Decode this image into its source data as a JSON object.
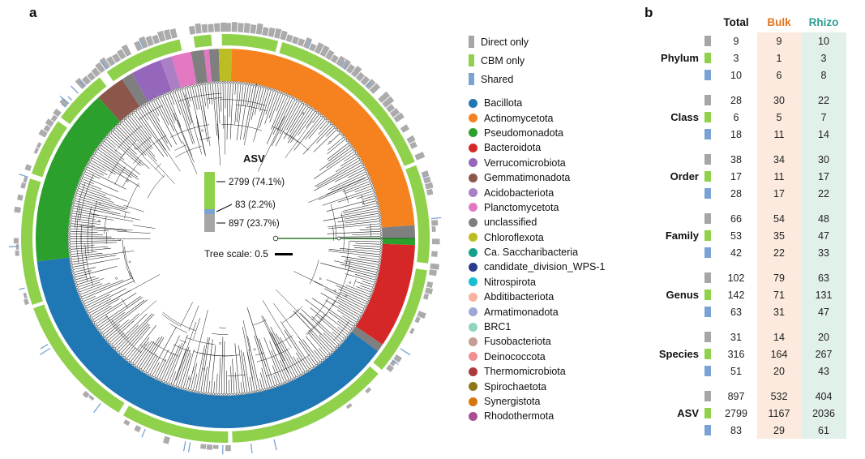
{
  "panel_labels": {
    "a": "a",
    "b": "b"
  },
  "chart_data": [
    {
      "type": "circular_phylogenetic_tree",
      "panel": "a",
      "ring_legend": [
        {
          "label": "Direct only",
          "color": "#a6a6a6"
        },
        {
          "label": "CBM only",
          "color": "#8fd14b"
        },
        {
          "label": "Shared",
          "color": "#7aa3d4"
        }
      ],
      "taxa_legend": [
        {
          "label": "Bacillota",
          "color": "#1f77b4"
        },
        {
          "label": "Actinomycetota",
          "color": "#f5821e"
        },
        {
          "label": "Pseudomonadota",
          "color": "#2ca02c"
        },
        {
          "label": "Bacteroidota",
          "color": "#d62728"
        },
        {
          "label": "Verrucomicrobiota",
          "color": "#9467bd"
        },
        {
          "label": "Gemmatimonadota",
          "color": "#8c564b"
        },
        {
          "label": "Acidobacteriota",
          "color": "#ab7fc5"
        },
        {
          "label": "Planctomycetota",
          "color": "#e377c2"
        },
        {
          "label": "unclassified",
          "color": "#7f7f7f"
        },
        {
          "label": "Chloroflexota",
          "color": "#bcbd22"
        },
        {
          "label": "Ca. Saccharibacteria",
          "color": "#13a18c"
        },
        {
          "label": "candidate_division_WPS-1",
          "color": "#2b3a8c"
        },
        {
          "label": "Nitrospirota",
          "color": "#17becf"
        },
        {
          "label": "Abditibacteriota",
          "color": "#f9b29f"
        },
        {
          "label": "Armatimonadota",
          "color": "#9fa8d5"
        },
        {
          "label": "BRC1",
          "color": "#8fd4c1"
        },
        {
          "label": "Fusobacteriota",
          "color": "#c49c94"
        },
        {
          "label": "Deinococcota",
          "color": "#f08f8f"
        },
        {
          "label": "Thermomicrobiota",
          "color": "#a93b3b"
        },
        {
          "label": "Spirochaetota",
          "color": "#8f7618"
        },
        {
          "label": "Synergistota",
          "color": "#d4770f"
        },
        {
          "label": "Rhodothermota",
          "color": "#aa4d93"
        }
      ],
      "asv_inset": {
        "title": "ASV",
        "segments": [
          {
            "label": "2799 (74.1%)",
            "value": 2799,
            "pct": 74.1,
            "set": "CBM only",
            "color": "#8fd14b"
          },
          {
            "label": "83 (2.2%)",
            "value": 83,
            "pct": 2.2,
            "set": "Shared",
            "color": "#7aa3d4"
          },
          {
            "label": "897 (23.7%)",
            "value": 897,
            "pct": 23.7,
            "set": "Direct only",
            "color": "#a6a6a6"
          }
        ]
      },
      "tree_scale": {
        "label": "Tree scale: 0.5",
        "value": 0.5
      },
      "sectors": [
        {
          "phylum": "Chloroflexota",
          "start": 0,
          "end": 2
        },
        {
          "phylum": "Actinomycetota",
          "start": 2,
          "end": 86
        },
        {
          "phylum": "unclassified",
          "start": 86,
          "end": 90
        },
        {
          "phylum": "Pseudomonadota",
          "start": 90,
          "end": 92
        },
        {
          "phylum": "Bacteroidota",
          "start": 92,
          "end": 124
        },
        {
          "phylum": "unclassified",
          "start": 124,
          "end": 126.5
        },
        {
          "phylum": "Bacillota",
          "start": 126.5,
          "end": 263
        },
        {
          "phylum": "Pseudomonadota",
          "start": 263,
          "end": 318
        },
        {
          "phylum": "Gemmatimonadota",
          "start": 318,
          "end": 327
        },
        {
          "phylum": "unclassified",
          "start": 327,
          "end": 330.5
        },
        {
          "phylum": "Verrucomicrobiota",
          "start": 330.5,
          "end": 340
        },
        {
          "phylum": "Acidobacteriota",
          "start": 340,
          "end": 343.5
        },
        {
          "phylum": "Planctomycetota",
          "start": 343.5,
          "end": 349.5
        },
        {
          "phylum": "unclassified",
          "start": 349.5,
          "end": 353.5
        },
        {
          "phylum": "Planctomycetota",
          "start": 353.5,
          "end": 355
        },
        {
          "phylum": "unclassified",
          "start": 355,
          "end": 358
        },
        {
          "phylum": "Chloroflexota",
          "start": 358,
          "end": 360
        }
      ]
    },
    {
      "type": "table",
      "panel": "b",
      "columns": [
        {
          "label": "Total",
          "color": "#111111"
        },
        {
          "label": "Bulk",
          "color": "#e1751c"
        },
        {
          "label": "Rhizo",
          "color": "#2a9d8f"
        }
      ],
      "column_bg": {
        "bulk": "#fbeadd",
        "rhizo": "#e2f0ea"
      },
      "set_colors": {
        "Direct only": "#a6a6a6",
        "CBM only": "#8fd14b",
        "Shared": "#7aa3d4"
      },
      "row_groups": [
        {
          "label": "Phylum",
          "rows": [
            {
              "set": "Direct only",
              "values": [
                9,
                9,
                10
              ]
            },
            {
              "set": "CBM only",
              "values": [
                3,
                1,
                3
              ]
            },
            {
              "set": "Shared",
              "values": [
                10,
                6,
                8
              ]
            }
          ]
        },
        {
          "label": "Class",
          "rows": [
            {
              "set": "Direct only",
              "values": [
                28,
                30,
                22
              ]
            },
            {
              "set": "CBM only",
              "values": [
                6,
                5,
                7
              ]
            },
            {
              "set": "Shared",
              "values": [
                18,
                11,
                14
              ]
            }
          ]
        },
        {
          "label": "Order",
          "rows": [
            {
              "set": "Direct only",
              "values": [
                38,
                34,
                30
              ]
            },
            {
              "set": "CBM only",
              "values": [
                17,
                11,
                17
              ]
            },
            {
              "set": "Shared",
              "values": [
                28,
                17,
                22
              ]
            }
          ]
        },
        {
          "label": "Family",
          "rows": [
            {
              "set": "Direct only",
              "values": [
                66,
                54,
                48
              ]
            },
            {
              "set": "CBM only",
              "values": [
                53,
                35,
                47
              ]
            },
            {
              "set": "Shared",
              "values": [
                42,
                22,
                33
              ]
            }
          ]
        },
        {
          "label": "Genus",
          "rows": [
            {
              "set": "Direct only",
              "values": [
                102,
                79,
                63
              ]
            },
            {
              "set": "CBM only",
              "values": [
                142,
                71,
                131
              ]
            },
            {
              "set": "Shared",
              "values": [
                63,
                31,
                47
              ]
            }
          ]
        },
        {
          "label": "Species",
          "rows": [
            {
              "set": "Direct only",
              "values": [
                31,
                14,
                20
              ]
            },
            {
              "set": "CBM only",
              "values": [
                316,
                164,
                267
              ]
            },
            {
              "set": "Shared",
              "values": [
                51,
                20,
                43
              ]
            }
          ]
        },
        {
          "label": "ASV",
          "rows": [
            {
              "set": "Direct only",
              "values": [
                897,
                532,
                404
              ]
            },
            {
              "set": "CBM only",
              "values": [
                2799,
                1167,
                2036
              ]
            },
            {
              "set": "Shared",
              "values": [
                83,
                29,
                61
              ]
            }
          ]
        }
      ]
    }
  ]
}
